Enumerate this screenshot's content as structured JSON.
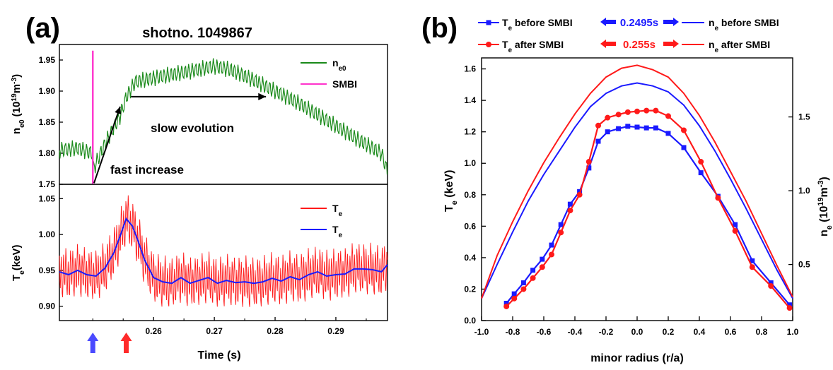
{
  "panels": {
    "a_label": "(a)",
    "b_label": "(b)"
  },
  "chart_data": [
    {
      "id": "a-top",
      "type": "line",
      "title": "shotno. 1049867",
      "xlabel": "",
      "ylabel_parts": [
        "n",
        "e0",
        " (10",
        "19",
        "m",
        "-3",
        ")"
      ],
      "xlim": [
        0.2445,
        0.2985
      ],
      "ylim": [
        1.75,
        1.975
      ],
      "yticks": [
        "1.75",
        "1.80",
        "1.85",
        "1.90",
        "1.95"
      ],
      "ytick_values": [
        1.75,
        1.8,
        1.85,
        1.9,
        1.95
      ],
      "legend": [
        {
          "name_main": "n",
          "name_sub": "e0",
          "color": "#1a8a1a"
        },
        {
          "name_main": "SMBI",
          "name_sub": "",
          "color": "#ff33cc"
        }
      ],
      "smbi_time": 0.25,
      "smbi_range": [
        1.75,
        1.965
      ],
      "envelope": {
        "x": [
          0.2445,
          0.2475,
          0.2499,
          0.2501,
          0.252,
          0.2545,
          0.2555,
          0.257,
          0.262,
          0.266,
          0.27,
          0.2725,
          0.276,
          0.28,
          0.284,
          0.289,
          0.294,
          0.2975,
          0.2985
        ],
        "y": [
          1.805,
          1.808,
          1.8,
          1.775,
          1.815,
          1.86,
          1.89,
          1.915,
          1.925,
          1.932,
          1.94,
          1.935,
          1.92,
          1.9,
          1.88,
          1.85,
          1.82,
          1.8,
          1.77
        ]
      },
      "oscillation_amplitude": 0.012,
      "oscillation_period": 0.00058,
      "annotations": [
        {
          "text": "fast increase",
          "arrow_from": [
            0.2502,
            1.752
          ],
          "arrow_to": [
            0.2545,
            1.875
          ]
        },
        {
          "text": "slow evolution",
          "arrow_from": [
            0.2563,
            1.891
          ],
          "arrow_to": [
            0.2785,
            1.891
          ]
        }
      ]
    },
    {
      "id": "a-bottom",
      "type": "line",
      "xlabel": "Time (s)",
      "ylabel_parts": [
        "T",
        "e",
        "(keV)"
      ],
      "xlim": [
        0.2445,
        0.2985
      ],
      "ylim": [
        0.88,
        1.07
      ],
      "xticks": [
        "0.26",
        "0.27",
        "0.28",
        "0.29"
      ],
      "xtick_values": [
        0.26,
        0.27,
        0.28,
        0.29
      ],
      "yticks": [
        "0.90",
        "0.95",
        "1.00",
        "1.05"
      ],
      "ytick_values": [
        0.9,
        0.95,
        1.0,
        1.05
      ],
      "legend": [
        {
          "name_main": "T",
          "name_sub": "e",
          "color": "#ff1a1a"
        },
        {
          "name_main": "T",
          "name_sub": "e",
          "color": "#1a1aff"
        }
      ],
      "series": [
        {
          "color": "#1a1aff",
          "x": [
            0.2445,
            0.246,
            0.2475,
            0.249,
            0.2505,
            0.252,
            0.2535,
            0.2545,
            0.2555,
            0.2565,
            0.2575,
            0.2585,
            0.26,
            0.2615,
            0.263,
            0.2645,
            0.266,
            0.2675,
            0.269,
            0.2705,
            0.272,
            0.2735,
            0.275,
            0.2765,
            0.278,
            0.2795,
            0.281,
            0.2825,
            0.284,
            0.2855,
            0.287,
            0.2885,
            0.29,
            0.2915,
            0.293,
            0.2945,
            0.296,
            0.2975,
            0.2985
          ],
          "y": [
            0.948,
            0.944,
            0.95,
            0.944,
            0.942,
            0.953,
            0.975,
            0.998,
            1.022,
            1.012,
            0.99,
            0.965,
            0.94,
            0.934,
            0.932,
            0.94,
            0.932,
            0.936,
            0.94,
            0.932,
            0.936,
            0.933,
            0.934,
            0.932,
            0.934,
            0.939,
            0.935,
            0.941,
            0.937,
            0.944,
            0.948,
            0.942,
            0.944,
            0.945,
            0.952,
            0.952,
            0.951,
            0.948,
            0.958
          ]
        },
        {
          "color": "#ff1a1a",
          "follows_series": 0,
          "oscillation_amplitude": 0.028,
          "oscillation_period": 0.00038
        }
      ],
      "markers": [
        {
          "time": 0.25,
          "color": "#4a4aff"
        },
        {
          "time": 0.2555,
          "color": "#ff2a2a"
        }
      ]
    },
    {
      "id": "b",
      "type": "line",
      "xlabel": "minor radius (r/a)",
      "ylabel_parts": [
        "T",
        "e",
        " (keV)"
      ],
      "ylabel2_parts": [
        "n",
        "e",
        " (10",
        "19",
        "m",
        "-3",
        ")"
      ],
      "xlim": [
        -1.0,
        1.0
      ],
      "ylim": [
        0.0,
        1.67
      ],
      "ylim2": [
        0.12,
        1.9
      ],
      "xticks": [
        "-1.0",
        "-0.8",
        "-0.6",
        "-0.4",
        "-0.2",
        "0.0",
        "0.2",
        "0.4",
        "0.6",
        "0.8",
        "1.0"
      ],
      "xtick_values": [
        -1.0,
        -0.8,
        -0.6,
        -0.4,
        -0.2,
        0.0,
        0.2,
        0.4,
        0.6,
        0.8,
        1.0
      ],
      "yticks": [
        "0.0",
        "0.2",
        "0.4",
        "0.6",
        "0.8",
        "1.0",
        "1.2",
        "1.4",
        "1.6"
      ],
      "ytick_values": [
        0.0,
        0.2,
        0.4,
        0.6,
        0.8,
        1.0,
        1.2,
        1.4,
        1.6
      ],
      "yticks2": [
        "0.5",
        "1.0",
        "1.5"
      ],
      "ytick2_values": [
        0.5,
        1.0,
        1.5
      ],
      "legend": {
        "te_before": {
          "main": "T",
          "sub": "e",
          "rest": " before SMBI",
          "color": "#1a1aff"
        },
        "te_after": {
          "main": "T",
          "sub": "e",
          "rest": " after SMBI",
          "color": "#ff1a1a"
        },
        "ne_before": {
          "main": "n",
          "sub": "e",
          "rest": " before SMBI",
          "color": "#1a1aff"
        },
        "ne_after": {
          "main": "n",
          "sub": "e",
          "rest": " after SMBI",
          "color": "#ff1a1a"
        },
        "time_before": "0.2495s",
        "time_after": "0.255s",
        "time_before_color": "#1a1aff",
        "time_after_color": "#ff1a1a"
      },
      "series": [
        {
          "name": "Te before SMBI",
          "axis": "left",
          "color": "#1a1aff",
          "marker": "square",
          "x": [
            -0.84,
            -0.79,
            -0.73,
            -0.67,
            -0.61,
            -0.55,
            -0.49,
            -0.43,
            -0.37,
            -0.31,
            -0.25,
            -0.19,
            -0.12,
            -0.06,
            0.0,
            0.06,
            0.12,
            0.2,
            0.3,
            0.41,
            0.52,
            0.63,
            0.74,
            0.86,
            0.98
          ],
          "y": [
            0.11,
            0.17,
            0.24,
            0.32,
            0.39,
            0.48,
            0.61,
            0.74,
            0.82,
            0.97,
            1.14,
            1.2,
            1.22,
            1.235,
            1.23,
            1.225,
            1.225,
            1.19,
            1.1,
            0.94,
            0.79,
            0.61,
            0.38,
            0.24,
            0.1
          ]
        },
        {
          "name": "Te after SMBI",
          "axis": "left",
          "color": "#ff1a1a",
          "marker": "circle",
          "x": [
            -0.84,
            -0.79,
            -0.73,
            -0.67,
            -0.61,
            -0.55,
            -0.49,
            -0.43,
            -0.37,
            -0.31,
            -0.25,
            -0.19,
            -0.12,
            -0.06,
            0.0,
            0.06,
            0.12,
            0.2,
            0.3,
            0.41,
            0.52,
            0.63,
            0.74,
            0.86,
            0.98
          ],
          "y": [
            0.09,
            0.14,
            0.2,
            0.27,
            0.34,
            0.42,
            0.56,
            0.7,
            0.8,
            1.01,
            1.24,
            1.29,
            1.31,
            1.325,
            1.33,
            1.335,
            1.335,
            1.3,
            1.21,
            1.01,
            0.78,
            0.57,
            0.34,
            0.22,
            0.08
          ]
        },
        {
          "name": "ne before SMBI",
          "axis": "right",
          "color": "#1a1aff",
          "x": [
            -1.0,
            -0.9,
            -0.8,
            -0.7,
            -0.6,
            -0.5,
            -0.4,
            -0.3,
            -0.2,
            -0.1,
            0.0,
            0.1,
            0.2,
            0.3,
            0.4,
            0.5,
            0.6,
            0.7,
            0.8,
            0.9,
            1.0
          ],
          "y": [
            0.27,
            0.5,
            0.72,
            0.93,
            1.11,
            1.27,
            1.43,
            1.57,
            1.66,
            1.71,
            1.73,
            1.71,
            1.67,
            1.58,
            1.44,
            1.27,
            1.08,
            0.88,
            0.67,
            0.46,
            0.27
          ]
        },
        {
          "name": "ne after SMBI",
          "axis": "right",
          "color": "#ff1a1a",
          "x": [
            -1.0,
            -0.9,
            -0.8,
            -0.7,
            -0.6,
            -0.5,
            -0.4,
            -0.3,
            -0.2,
            -0.1,
            0.0,
            0.1,
            0.2,
            0.3,
            0.4,
            0.5,
            0.6,
            0.7,
            0.8,
            0.9,
            1.0
          ],
          "y": [
            0.27,
            0.56,
            0.79,
            1.0,
            1.19,
            1.36,
            1.52,
            1.66,
            1.77,
            1.83,
            1.85,
            1.82,
            1.77,
            1.66,
            1.51,
            1.33,
            1.13,
            0.93,
            0.71,
            0.49,
            0.28
          ]
        }
      ]
    }
  ]
}
